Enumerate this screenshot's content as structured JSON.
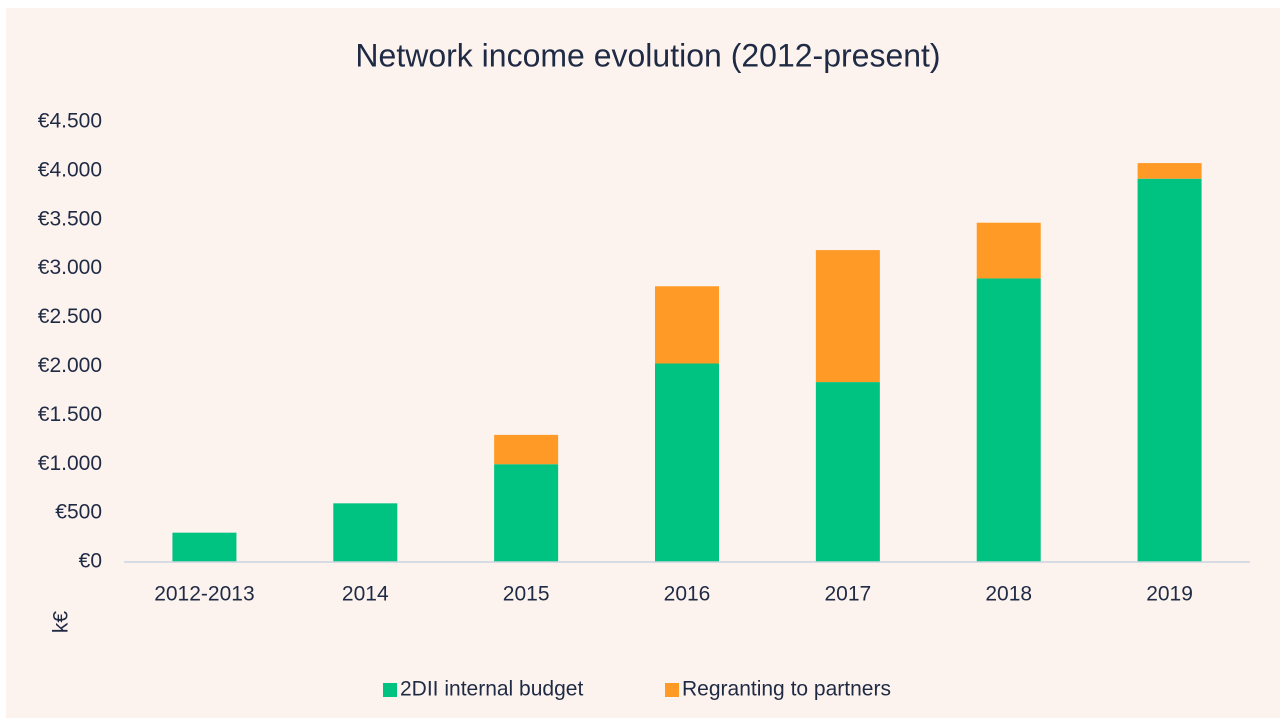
{
  "chart_data": {
    "type": "stacked_bar",
    "title": "Network income evolution (2012-present)",
    "y_label": "k€",
    "categories": [
      "2012-2013",
      "2014",
      "2015",
      "2016",
      "2017",
      "2018",
      "2019"
    ],
    "series": [
      {
        "name": "2DII internal budget",
        "color": "#00c281",
        "values": [
          300,
          600,
          1000,
          2030,
          1840,
          2900,
          3920
        ]
      },
      {
        "name": "Regranting to partners",
        "color": "#ff9a27",
        "values": [
          0,
          0,
          300,
          790,
          1350,
          570,
          160
        ]
      }
    ],
    "ylim": [
      0,
      4500
    ],
    "yticks": [
      {
        "value": 0,
        "label": "€0"
      },
      {
        "value": 500,
        "label": "€500"
      },
      {
        "value": 1000,
        "label": "€1.000"
      },
      {
        "value": 1500,
        "label": "€1.500"
      },
      {
        "value": 2000,
        "label": "€2.000"
      },
      {
        "value": 2500,
        "label": "€2.500"
      },
      {
        "value": 3000,
        "label": "€3.000"
      },
      {
        "value": 3500,
        "label": "€3.500"
      },
      {
        "value": 4000,
        "label": "€4.000"
      },
      {
        "value": 4500,
        "label": "€4.500"
      }
    ],
    "grid": false,
    "legend": "bottom"
  }
}
